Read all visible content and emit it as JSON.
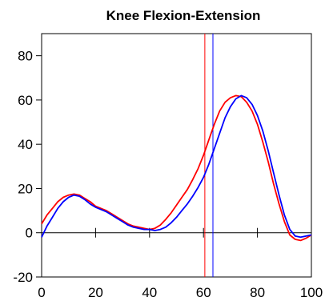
{
  "chart_data": {
    "type": "line",
    "title": "Knee Flexion-Extension",
    "xlabel": "",
    "ylabel": "",
    "xlim": [
      0,
      100
    ],
    "ylim": [
      -20,
      90
    ],
    "xticks": [
      0,
      20,
      40,
      60,
      80,
      100
    ],
    "yticks": [
      -20,
      0,
      20,
      40,
      60,
      80
    ],
    "grid": false,
    "zero_line": true,
    "series": [
      {
        "color": "#ff0000",
        "x": [
          0,
          2,
          4,
          6,
          8,
          10,
          12,
          14,
          16,
          18,
          20,
          22,
          24,
          26,
          28,
          30,
          32,
          34,
          36,
          38,
          40,
          42,
          44,
          46,
          48,
          50,
          52,
          54,
          56,
          58,
          60,
          62,
          64,
          66,
          68,
          70,
          72,
          74,
          76,
          78,
          80,
          82,
          84,
          86,
          88,
          90,
          92,
          94,
          96,
          98,
          100
        ],
        "y": [
          4,
          8,
          11,
          14,
          16,
          17,
          17.5,
          17,
          15.5,
          14,
          12,
          11,
          10,
          8.5,
          7,
          5.5,
          4,
          3,
          2.5,
          2,
          1.5,
          2,
          3.5,
          6,
          9,
          12.5,
          16,
          19.5,
          24,
          29,
          35,
          42,
          49,
          55,
          59,
          61,
          62,
          61.5,
          59,
          55,
          49,
          41,
          32,
          22,
          13,
          5,
          -1,
          -3,
          -3.5,
          -2.5,
          -1
        ]
      },
      {
        "color": "#0000ff",
        "x": [
          0,
          2,
          4,
          6,
          8,
          10,
          12,
          14,
          16,
          18,
          20,
          22,
          24,
          26,
          28,
          30,
          32,
          34,
          36,
          38,
          40,
          42,
          44,
          46,
          48,
          50,
          52,
          54,
          56,
          58,
          60,
          62,
          64,
          66,
          68,
          70,
          72,
          74,
          76,
          78,
          80,
          82,
          84,
          86,
          88,
          90,
          92,
          94,
          96,
          98,
          100
        ],
        "y": [
          -2,
          3,
          7,
          11,
          14,
          16,
          17,
          16.5,
          15,
          13,
          11.5,
          10.5,
          9.5,
          8,
          6.5,
          5,
          3.5,
          2.5,
          2,
          1.5,
          1.5,
          1,
          1.5,
          2.5,
          4.5,
          7,
          10,
          13,
          16.5,
          20.5,
          25,
          31,
          38,
          45,
          52,
          57,
          60.5,
          62,
          61,
          58,
          53,
          46,
          37,
          27,
          17,
          8,
          1.5,
          -1.5,
          -2,
          -1.5,
          -1
        ]
      }
    ],
    "vlines": [
      {
        "x": 60.5,
        "color": "#ff0000"
      },
      {
        "x": 63.5,
        "color": "#0000ff"
      }
    ]
  }
}
